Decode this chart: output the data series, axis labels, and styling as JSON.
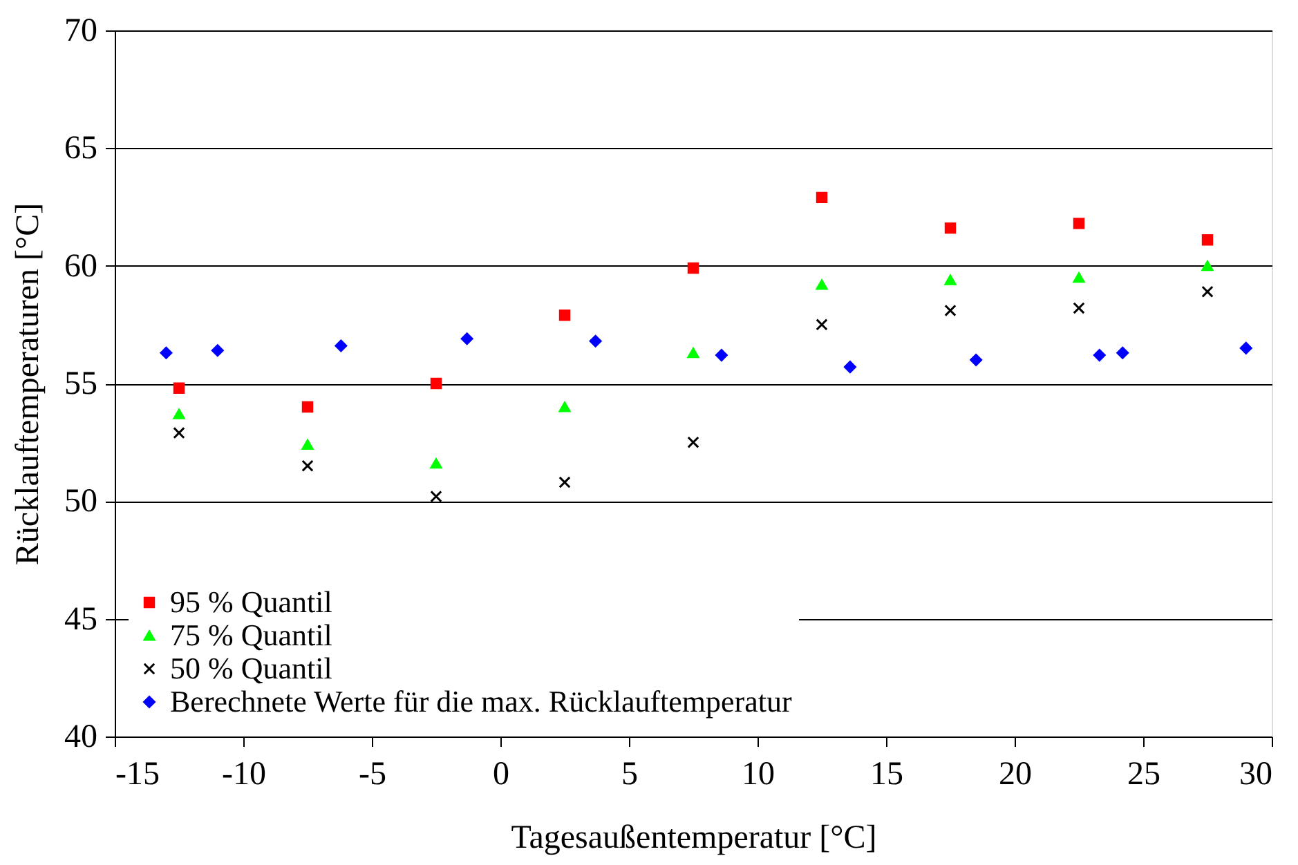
{
  "chart_data": {
    "type": "scatter",
    "xlabel": "Tagesaußentemperatur [°C]",
    "ylabel": "Rücklauftemperaturen [°C]",
    "xlim": [
      -15,
      30
    ],
    "xticks": [
      -15,
      -10,
      -5,
      0,
      5,
      10,
      15,
      20,
      25,
      30
    ],
    "ylim": [
      40,
      70
    ],
    "yticks": [
      40,
      45,
      50,
      55,
      60,
      65,
      70
    ],
    "grid": "y",
    "legend": "bottom left",
    "series": [
      {
        "name": "95 % Quantil",
        "color": "#ff0000",
        "marker": "square",
        "x": [
          -12.5,
          -7.5,
          -2.5,
          2.5,
          7.5,
          12.5,
          17.5,
          22.5,
          27.5
        ],
        "values": [
          54.8,
          54.0,
          55.0,
          57.9,
          59.9,
          62.9,
          61.6,
          61.8,
          61.1
        ]
      },
      {
        "name": "75 % Quantil",
        "color": "#00ff00",
        "marker": "triangle",
        "x": [
          -12.5,
          -7.5,
          -2.5,
          2.5,
          7.5,
          12.5,
          17.5,
          22.5,
          27.5
        ],
        "values": [
          53.7,
          52.4,
          51.6,
          54.0,
          56.3,
          59.2,
          59.4,
          59.5,
          60.0
        ]
      },
      {
        "name": "50 % Quantil",
        "color": "#000000",
        "marker": "cross",
        "x": [
          -12.5,
          -7.5,
          -2.5,
          2.5,
          7.5,
          12.5,
          17.5,
          22.5,
          27.5
        ],
        "values": [
          52.9,
          51.5,
          50.2,
          50.8,
          52.5,
          57.5,
          58.1,
          58.2,
          58.9
        ]
      },
      {
        "name": "Berechnete Werte für die max. Rücklauftemperatur",
        "color": "#0000ff",
        "marker": "diamond",
        "x": [
          -13.0,
          -11.0,
          -6.2,
          -1.3,
          3.7,
          8.6,
          13.6,
          18.5,
          23.3,
          24.2,
          29.0
        ],
        "values": [
          56.3,
          56.4,
          56.6,
          56.9,
          56.8,
          56.2,
          55.7,
          56.0,
          56.2,
          56.3,
          56.5
        ]
      }
    ]
  }
}
